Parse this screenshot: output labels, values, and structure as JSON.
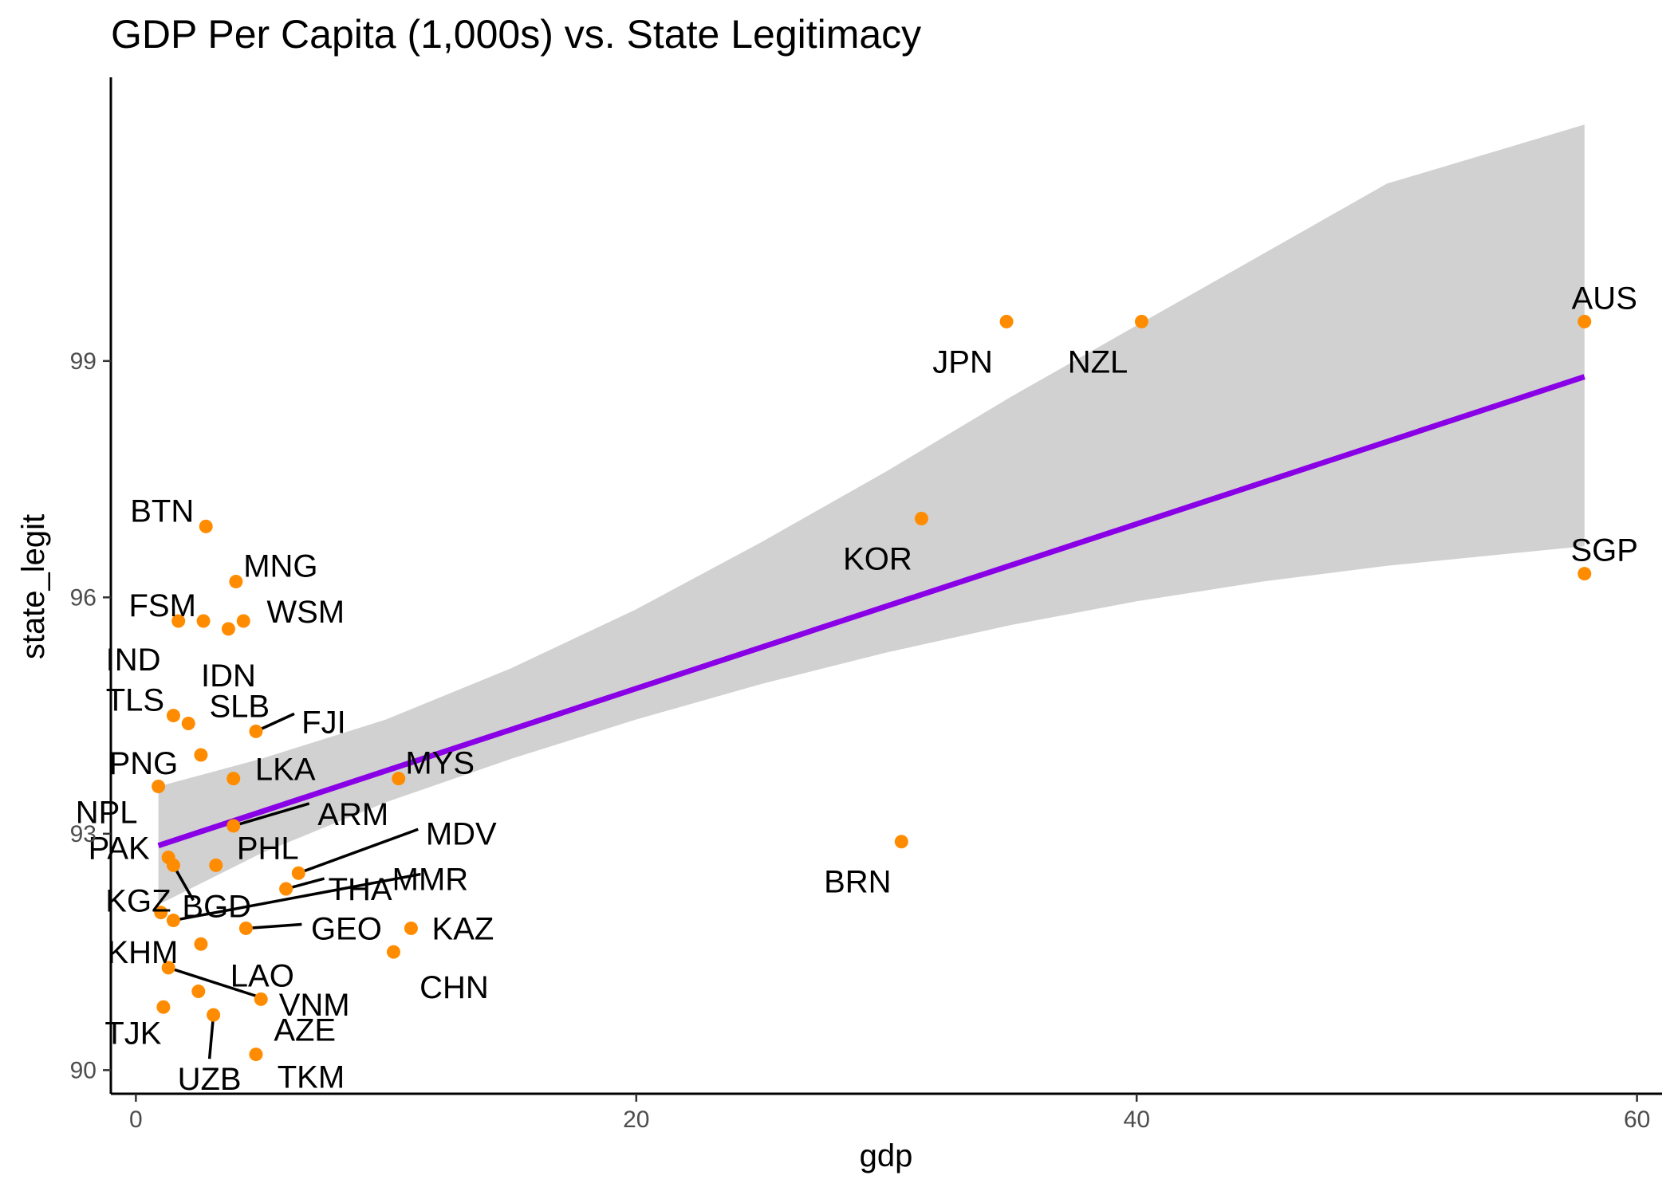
{
  "chart_data": {
    "type": "scatter",
    "title": "GDP Per Capita (1,000s) vs. State Legitimacy",
    "xlabel": "gdp",
    "ylabel": "state_legit",
    "xlim": [
      -1.0,
      61.0
    ],
    "ylim": [
      89.7,
      102.6
    ],
    "xticks": [
      0,
      20,
      40,
      60
    ],
    "yticks": [
      90,
      93,
      96,
      99
    ],
    "grid": false,
    "legend": "none",
    "point_color": "#ff8c00",
    "line_color": "#8a00e6",
    "band_color": "#bfbfbf",
    "fit": {
      "x": [
        0.9,
        57.9
      ],
      "y": [
        92.85,
        98.8
      ],
      "band": [
        {
          "x": 0.9,
          "lo": 92.1,
          "hi": 93.6
        },
        {
          "x": 5,
          "lo": 92.75,
          "hi": 93.95
        },
        {
          "x": 10,
          "lo": 93.4,
          "hi": 94.45
        },
        {
          "x": 15,
          "lo": 93.95,
          "hi": 95.1
        },
        {
          "x": 20,
          "lo": 94.45,
          "hi": 95.85
        },
        {
          "x": 25,
          "lo": 94.9,
          "hi": 96.7
        },
        {
          "x": 30,
          "lo": 95.3,
          "hi": 97.6
        },
        {
          "x": 35,
          "lo": 95.65,
          "hi": 98.55
        },
        {
          "x": 40,
          "lo": 95.95,
          "hi": 99.45
        },
        {
          "x": 45,
          "lo": 96.2,
          "hi": 100.35
        },
        {
          "x": 50,
          "lo": 96.4,
          "hi": 101.25
        },
        {
          "x": 57.9,
          "lo": 96.65,
          "hi": 102.0
        }
      ]
    },
    "points": [
      {
        "label": "AUS",
        "x": 57.9,
        "y": 99.5
      },
      {
        "label": "NZL",
        "x": 40.2,
        "y": 99.5
      },
      {
        "label": "JPN",
        "x": 34.8,
        "y": 99.5
      },
      {
        "label": "SGP",
        "x": 57.9,
        "y": 96.3
      },
      {
        "label": "KOR",
        "x": 31.4,
        "y": 97.0
      },
      {
        "label": "BRN",
        "x": 30.6,
        "y": 92.9
      },
      {
        "label": "BTN",
        "x": 2.8,
        "y": 96.9
      },
      {
        "label": "MNG",
        "x": 4.0,
        "y": 96.2
      },
      {
        "label": "FSM",
        "x": 1.7,
        "y": 95.7
      },
      {
        "label": "WSM",
        "x": 4.3,
        "y": 95.7
      },
      {
        "label": "IND",
        "x": 2.7,
        "y": 95.7
      },
      {
        "label": "IDN",
        "x": 3.7,
        "y": 95.6
      },
      {
        "label": "TLS",
        "x": 1.5,
        "y": 94.5
      },
      {
        "label": "SLB",
        "x": 2.1,
        "y": 94.4
      },
      {
        "label": "FJI",
        "x": 4.8,
        "y": 94.3
      },
      {
        "label": "PNG",
        "x": 2.6,
        "y": 94.0
      },
      {
        "label": "LKA",
        "x": 3.9,
        "y": 93.7
      },
      {
        "label": "MYS",
        "x": 10.5,
        "y": 93.7
      },
      {
        "label": "NPL",
        "x": 0.9,
        "y": 93.6
      },
      {
        "label": "ARM",
        "x": 3.9,
        "y": 93.1
      },
      {
        "label": "PAK",
        "x": 1.3,
        "y": 92.7
      },
      {
        "label": "PHL",
        "x": 3.2,
        "y": 92.6
      },
      {
        "label": "KGZ",
        "x": 1.5,
        "y": 92.6
      },
      {
        "label": "MDV",
        "x": 6.5,
        "y": 92.5
      },
      {
        "label": "THA",
        "x": 6.0,
        "y": 92.3
      },
      {
        "label": "BGD",
        "x": 1.0,
        "y": 92.0
      },
      {
        "label": "MMR",
        "x": 1.5,
        "y": 91.9
      },
      {
        "label": "GEO",
        "x": 4.4,
        "y": 91.8
      },
      {
        "label": "KAZ",
        "x": 11.0,
        "y": 91.8
      },
      {
        "label": "KHM",
        "x": 2.6,
        "y": 91.6
      },
      {
        "label": "CHN",
        "x": 10.3,
        "y": 91.5
      },
      {
        "label": "VNM",
        "x": 1.3,
        "y": 91.3
      },
      {
        "label": "LAO",
        "x": 2.5,
        "y": 91.0
      },
      {
        "label": "AZE",
        "x": 5.0,
        "y": 90.9
      },
      {
        "label": "TJK",
        "x": 1.1,
        "y": 90.8
      },
      {
        "label": "UZB",
        "x": 3.1,
        "y": 90.7
      },
      {
        "label": "TKM",
        "x": 4.8,
        "y": 90.2
      }
    ]
  }
}
